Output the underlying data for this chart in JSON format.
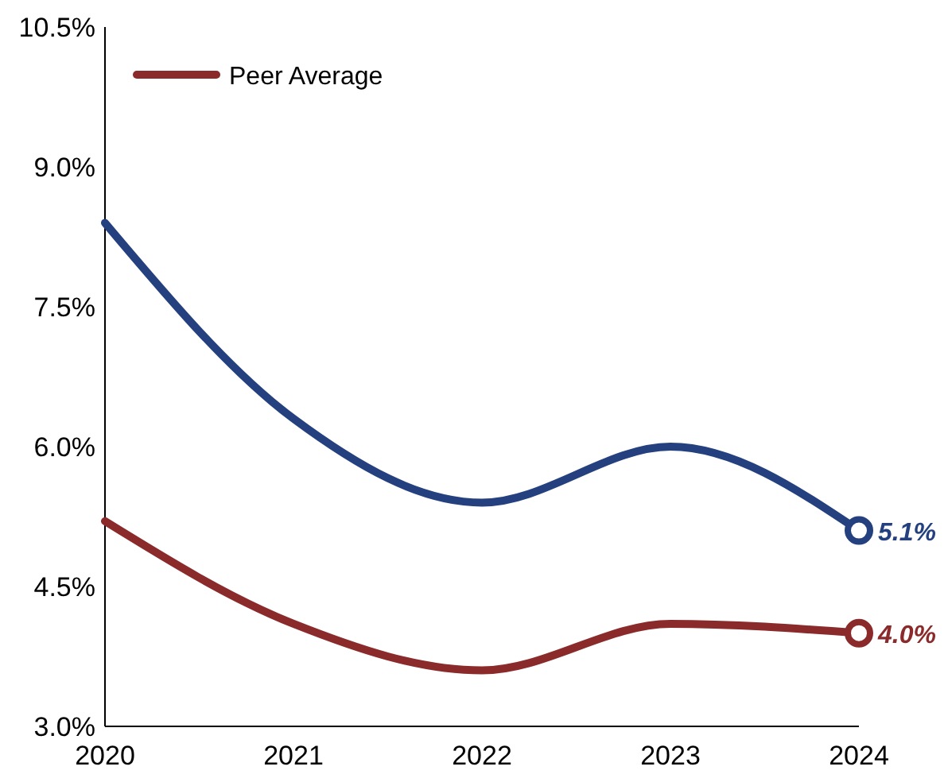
{
  "chart_data": {
    "type": "line",
    "x": [
      2020,
      2021,
      2022,
      2023,
      2024
    ],
    "series": [
      {
        "color": "#24407e",
        "values": [
          8.4,
          6.3,
          5.4,
          6.0,
          5.1
        ],
        "value_labels": [
          null,
          null,
          null,
          null,
          "5.1%"
        ]
      },
      {
        "name": "Peer Average",
        "color": "#8b2a2a",
        "values": [
          5.2,
          4.1,
          3.6,
          4.1,
          4.0
        ],
        "value_labels": [
          null,
          null,
          null,
          null,
          "4.0%"
        ]
      }
    ],
    "xlim": [
      2020,
      2024
    ],
    "xticks": [
      2020,
      2021,
      2022,
      2023,
      2024
    ],
    "ylim": [
      3,
      10.5
    ],
    "yticks": [
      {
        "value": 3,
        "label": "3.0%"
      },
      {
        "value": 4.5,
        "label": "4.5%"
      },
      {
        "value": 6,
        "label": "6.0%"
      },
      {
        "value": 7.5,
        "label": "7.5%"
      },
      {
        "value": 9,
        "label": "9.0%"
      },
      {
        "value": 10.5,
        "label": "10.5%"
      }
    ],
    "grid": false,
    "legend": "top left",
    "line_style": "solid"
  }
}
